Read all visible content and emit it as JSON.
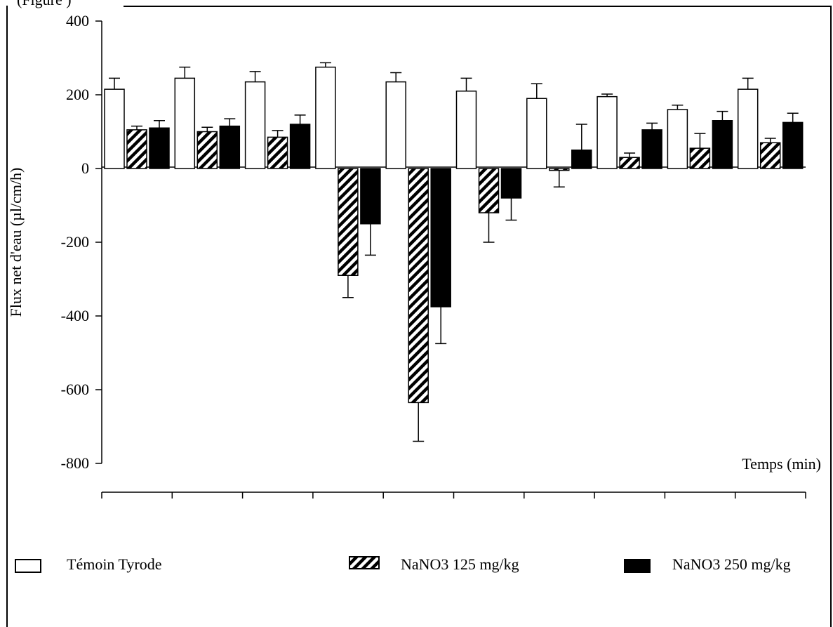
{
  "header_fragment": "(Figure )",
  "chart_data": {
    "type": "bar",
    "title": "",
    "xlabel": "Temps (min)",
    "ylabel": "Flux net d'eau (µl/cm/h)",
    "ylim": [
      -800,
      400
    ],
    "yticks": [
      "400",
      "200",
      "0",
      "-200",
      "-400",
      "-600",
      "-800"
    ],
    "ytick_values": [
      400,
      200,
      0,
      -200,
      -400,
      -600,
      -800
    ],
    "categories": [
      "",
      "",
      "",
      "",
      "",
      "",
      "",
      "",
      "",
      ""
    ],
    "series": [
      {
        "name": "Témoin Tyrode",
        "pattern": "empty",
        "values": [
          215,
          245,
          235,
          275,
          235,
          210,
          190,
          195,
          160,
          215
        ],
        "errors": [
          30,
          30,
          28,
          12,
          25,
          35,
          40,
          7,
          12,
          30
        ]
      },
      {
        "name": "NaNO3 125 mg/kg",
        "pattern": "hatched",
        "values": [
          105,
          100,
          85,
          -290,
          -635,
          -120,
          -5,
          30,
          55,
          70
        ],
        "errors": [
          10,
          12,
          18,
          60,
          105,
          80,
          45,
          12,
          40,
          12
        ]
      },
      {
        "name": "NaNO3 250 mg/kg",
        "pattern": "solid",
        "values": [
          110,
          115,
          120,
          -150,
          -375,
          -80,
          50,
          105,
          130,
          125
        ],
        "errors": [
          20,
          20,
          25,
          85,
          100,
          60,
          70,
          18,
          25,
          25
        ]
      }
    ],
    "legend_position": "bottom",
    "grid": false,
    "colors": {
      "empty": "#ffffff",
      "solid": "#000000",
      "stroke": "#000000"
    }
  }
}
